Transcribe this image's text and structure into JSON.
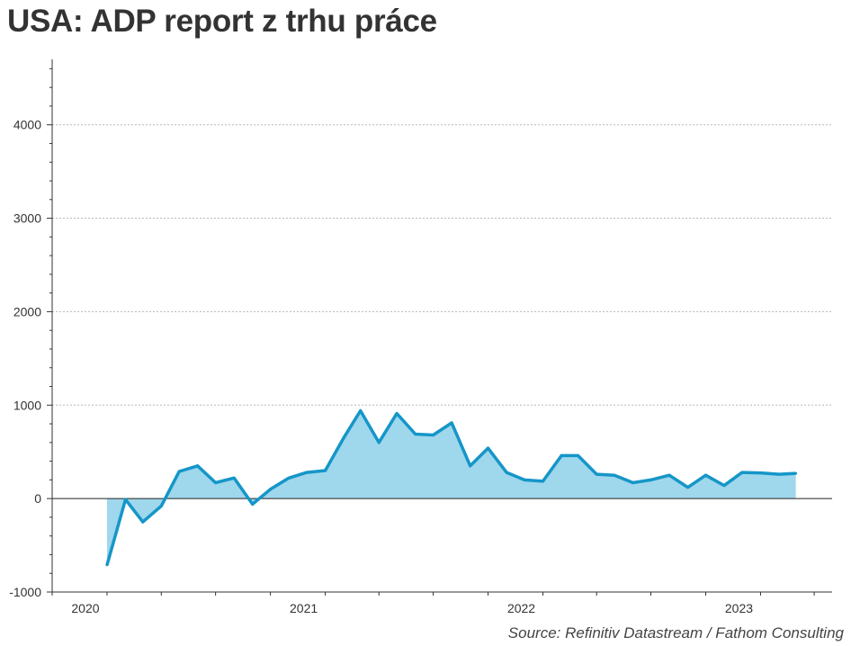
{
  "title": "USA: ADP report z trhu práce",
  "source": "Source: Refinitiv Datastream / Fathom Consulting",
  "colors": {
    "line": "#1596c8",
    "fill": "#9fd7ec",
    "axis": "#333333",
    "grid": "#b8b8b8"
  },
  "chart_data": {
    "type": "area",
    "title": "USA: ADP report z trhu práce",
    "xlabel": "",
    "ylabel": "",
    "ylim": [
      -1000,
      4700
    ],
    "xlim": [
      "2019-10-01",
      "2023-05-01"
    ],
    "yticks": [
      -1000,
      0,
      1000,
      2000,
      3000,
      4000
    ],
    "xtick_labels": [
      {
        "label": "2020",
        "date": "2020-01-01"
      },
      {
        "label": "2021",
        "date": "2021-01-01"
      },
      {
        "label": "2022",
        "date": "2022-01-01"
      },
      {
        "label": "2023",
        "date": "2023-01-01"
      }
    ],
    "grid": "horizontal",
    "series": [
      {
        "x": [
          "2020-01",
          "2020-02",
          "2020-03",
          "2020-04",
          "2020-05",
          "2020-06",
          "2020-07",
          "2020-08",
          "2020-09",
          "2020-10",
          "2020-11",
          "2020-12",
          "2021-01",
          "2021-02",
          "2021-03",
          "2021-04",
          "2021-05",
          "2021-06",
          "2021-07",
          "2021-08",
          "2021-09",
          "2021-10",
          "2021-11",
          "2021-12",
          "2022-01",
          "2022-02",
          "2022-03",
          "2022-04",
          "2022-05",
          "2022-06",
          "2022-07",
          "2022-08",
          "2022-09",
          "2022-10",
          "2022-11",
          "2022-12",
          "2023-01",
          "2023-02",
          "2023-03"
        ],
        "values": [
          -710,
          -10,
          -250,
          -80,
          290,
          350,
          170,
          220,
          -60,
          100,
          220,
          280,
          300,
          650,
          940,
          600,
          910,
          690,
          680,
          810,
          350,
          540,
          280,
          200,
          185,
          460,
          460,
          260,
          250,
          170,
          200,
          250,
          120,
          250,
          140,
          280,
          275,
          260,
          270
        ]
      }
    ]
  }
}
